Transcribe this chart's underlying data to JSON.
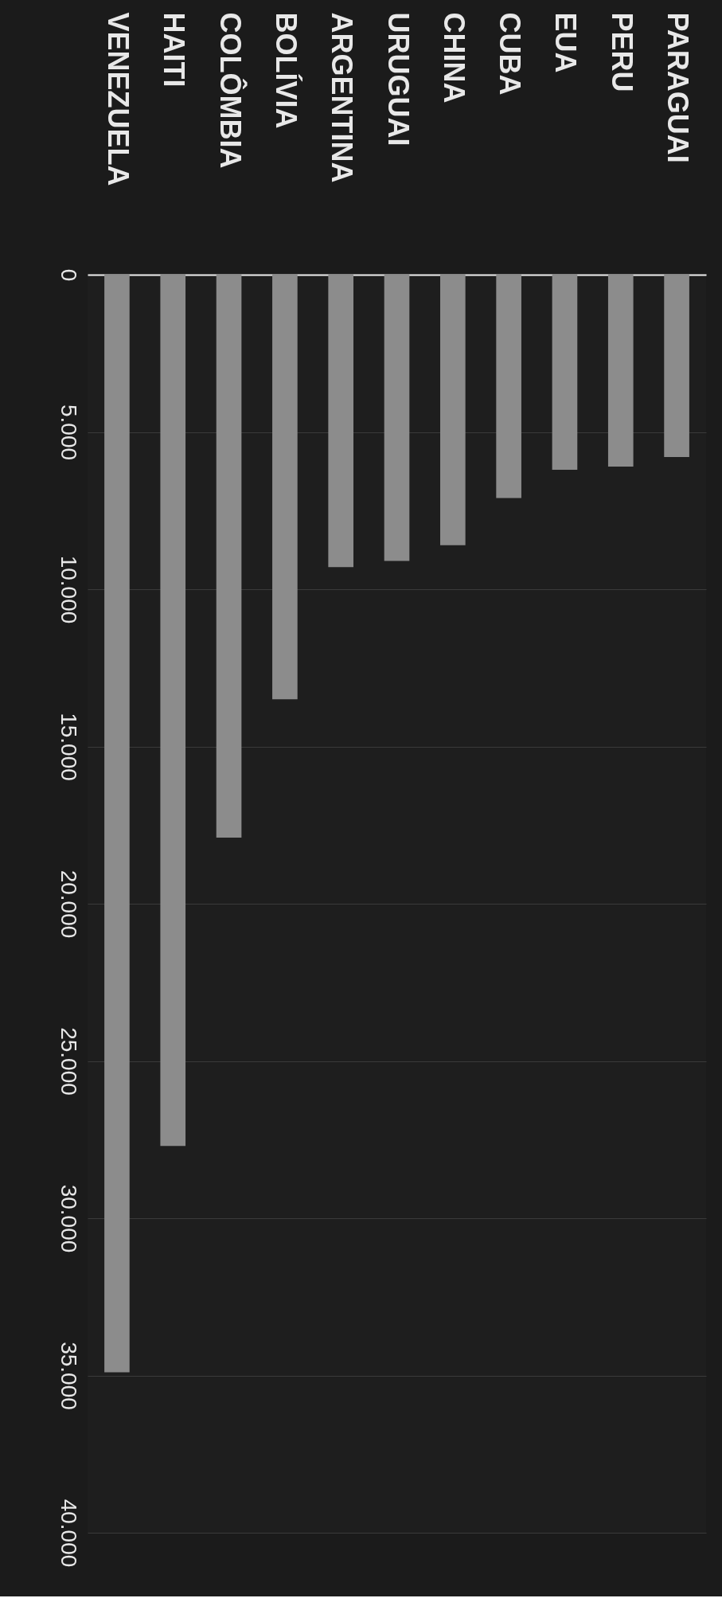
{
  "chart_data": {
    "type": "bar",
    "categories": [
      "VENEZUELA",
      "HAITI",
      "COLÔMBIA",
      "BOLÍVIA",
      "ARGENTINA",
      "URUGUAI",
      "CHINA",
      "CUBA",
      "EUA",
      "PERU",
      "PARAGUAI"
    ],
    "values": [
      34900,
      27700,
      17900,
      13500,
      9300,
      9100,
      8600,
      7100,
      6200,
      6100,
      5800
    ],
    "color": "#8c8c8c",
    "ylim": [
      40000,
      0
    ],
    "yticks": [
      0,
      {
        "value": 5000,
        "label": "5.000"
      },
      {
        "value": 10000,
        "label": "10.000"
      },
      {
        "value": 15000,
        "label": "15.000"
      },
      {
        "value": 20000,
        "label": "20.000"
      },
      {
        "value": 25000,
        "label": "25.000"
      },
      {
        "value": 30000,
        "label": "30.000"
      },
      {
        "value": 35000,
        "label": "35.000"
      },
      {
        "value": 40000,
        "label": "40.000"
      }
    ],
    "grid": "y"
  }
}
